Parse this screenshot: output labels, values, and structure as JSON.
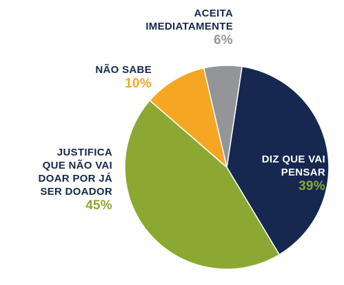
{
  "chart_data": {
    "type": "pie",
    "slices": [
      {
        "label_lines": [
          "DIZ QUE VAI",
          "PENSAR"
        ],
        "value": 39,
        "value_label": "39%",
        "color": "#16284f"
      },
      {
        "label_lines": [
          "JUSTIFICA",
          "QUE NÃO VAI",
          "DOAR POR JÁ",
          "SER DOADOR"
        ],
        "value": 45,
        "value_label": "45%",
        "color": "#8ba832"
      },
      {
        "label_lines": [
          "NÃO SABE"
        ],
        "value": 10,
        "value_label": "10%",
        "color": "#f5a623"
      },
      {
        "label_lines": [
          "ACEITA",
          "IMEDIATAMENTE"
        ],
        "value": 6,
        "value_label": "6%",
        "color": "#939598"
      }
    ]
  }
}
